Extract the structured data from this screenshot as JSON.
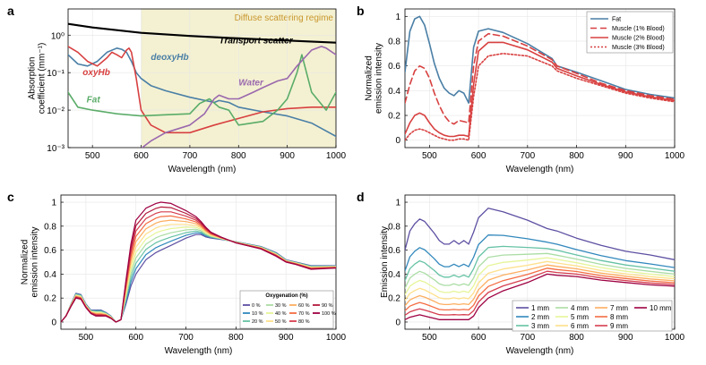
{
  "chart_data": [
    {
      "panel": "a",
      "type": "line",
      "xlabel": "Wavelength (nm)",
      "ylabel": [
        "Absorption",
        "coefficient (mm⁻¹)"
      ],
      "xlim": [
        450,
        1000
      ],
      "ylog": true,
      "ylim": [
        0.001,
        5
      ],
      "xticks": [
        500,
        600,
        700,
        800,
        900,
        1000
      ],
      "ytick_labels": [
        "10⁰",
        "10⁻¹",
        "10⁻²",
        "10⁻³"
      ],
      "shade": {
        "x0": 600,
        "x1": 1000,
        "label": "Diffuse scattering regime",
        "color": "#f4f1d2",
        "labelColor": "#c8962c"
      },
      "series": [
        {
          "name": "Transport scatter",
          "color": "#000000",
          "width": 2.2,
          "x": [
            450,
            500,
            600,
            700,
            800,
            900,
            1000
          ],
          "y": [
            2.0,
            1.6,
            1.15,
            0.95,
            0.82,
            0.72,
            0.63
          ]
        },
        {
          "name": "deoxyHb",
          "color": "#4a7fa6",
          "width": 1.6,
          "x": [
            450,
            470,
            490,
            510,
            530,
            550,
            560,
            570,
            580,
            590,
            600,
            620,
            650,
            700,
            750,
            760,
            780,
            800,
            850,
            900,
            950,
            1000
          ],
          "y": [
            0.3,
            0.17,
            0.15,
            0.2,
            0.35,
            0.45,
            0.42,
            0.35,
            0.2,
            0.1,
            0.07,
            0.045,
            0.033,
            0.022,
            0.016,
            0.018,
            0.016,
            0.012,
            0.009,
            0.007,
            0.0045,
            0.002
          ]
        },
        {
          "name": "oxyHb",
          "color": "#d84040",
          "width": 1.6,
          "x": [
            450,
            470,
            490,
            510,
            530,
            540,
            550,
            560,
            570,
            575,
            580,
            590,
            600,
            620,
            650,
            700,
            750,
            800,
            850,
            900,
            950,
            1000
          ],
          "y": [
            0.5,
            0.35,
            0.2,
            0.15,
            0.25,
            0.35,
            0.3,
            0.25,
            0.4,
            0.45,
            0.35,
            0.07,
            0.01,
            0.004,
            0.0025,
            0.0025,
            0.004,
            0.006,
            0.009,
            0.011,
            0.012,
            0.012
          ]
        },
        {
          "name": "Fat",
          "color": "#5aac68",
          "width": 1.6,
          "x": [
            450,
            470,
            500,
            550,
            600,
            650,
            700,
            720,
            740,
            760,
            780,
            800,
            850,
            880,
            900,
            920,
            930,
            950,
            980,
            1000
          ],
          "y": [
            0.03,
            0.012,
            0.01,
            0.008,
            0.007,
            0.0075,
            0.008,
            0.015,
            0.02,
            0.012,
            0.01,
            0.004,
            0.005,
            0.01,
            0.02,
            0.1,
            0.3,
            0.03,
            0.01,
            0.03
          ]
        },
        {
          "name": "Water",
          "color": "#9a68ad",
          "width": 1.6,
          "x": [
            600,
            620,
            650,
            700,
            730,
            750,
            760,
            780,
            800,
            830,
            850,
            880,
            900,
            920,
            950,
            970,
            980,
            1000
          ],
          "y": [
            0.00095,
            0.0015,
            0.0025,
            0.004,
            0.008,
            0.02,
            0.025,
            0.02,
            0.02,
            0.03,
            0.04,
            0.06,
            0.07,
            0.15,
            0.4,
            0.5,
            0.45,
            0.3
          ]
        }
      ],
      "annotations": [
        {
          "text": "Transport scatter",
          "x": 760,
          "y": 0.6,
          "color": "#000000"
        },
        {
          "text": "deoxyHb",
          "x": 620,
          "y": 0.22,
          "color": "#4a7fa6"
        },
        {
          "text": "oxyHb",
          "x": 480,
          "y": 0.085,
          "color": "#d84040"
        },
        {
          "text": "Water",
          "x": 800,
          "y": 0.045,
          "color": "#9a68ad"
        },
        {
          "text": "Fat",
          "x": 488,
          "y": 0.016,
          "color": "#5aac68"
        }
      ]
    },
    {
      "panel": "b",
      "type": "line",
      "xlabel": "Wavelength (nm)",
      "ylabel": [
        "Normalized",
        "emission intensity"
      ],
      "xlim": [
        450,
        1000
      ],
      "ylim": [
        -0.06,
        1.06
      ],
      "xticks": [
        500,
        600,
        700,
        800,
        900,
        1000
      ],
      "yticks": [
        0,
        0.2,
        0.4,
        0.6,
        0.8,
        1
      ],
      "ytick_labels": [
        "0",
        "0.2",
        "0.4",
        "0.6",
        "0.8",
        "1"
      ],
      "legend": {
        "position": "top-right"
      },
      "series": [
        {
          "name": "Fat",
          "color": "#4a7fa6",
          "dash": "",
          "width": 1.6,
          "x": [
            450,
            460,
            470,
            480,
            490,
            500,
            510,
            520,
            530,
            540,
            550,
            560,
            570,
            580,
            590,
            600,
            620,
            650,
            700,
            750,
            760,
            800,
            850,
            900,
            950,
            1000
          ],
          "y": [
            0.55,
            0.88,
            0.98,
            1.0,
            0.93,
            0.78,
            0.62,
            0.5,
            0.42,
            0.38,
            0.36,
            0.4,
            0.38,
            0.3,
            0.75,
            0.88,
            0.9,
            0.87,
            0.78,
            0.66,
            0.6,
            0.55,
            0.48,
            0.41,
            0.37,
            0.34
          ]
        },
        {
          "name": "Muscle (1% Blood)",
          "color": "#d84040",
          "dash": "7,4",
          "width": 1.6,
          "x": [
            450,
            460,
            470,
            480,
            490,
            500,
            510,
            520,
            530,
            540,
            550,
            560,
            570,
            580,
            590,
            600,
            620,
            650,
            700,
            750,
            760,
            800,
            850,
            900,
            950,
            1000
          ],
          "y": [
            0.3,
            0.45,
            0.56,
            0.6,
            0.58,
            0.5,
            0.38,
            0.28,
            0.2,
            0.15,
            0.13,
            0.16,
            0.15,
            0.14,
            0.6,
            0.8,
            0.86,
            0.84,
            0.76,
            0.65,
            0.6,
            0.54,
            0.46,
            0.4,
            0.36,
            0.33
          ]
        },
        {
          "name": "Muscle (2% Blood)",
          "color": "#d84040",
          "dash": "",
          "width": 1.6,
          "x": [
            450,
            460,
            470,
            480,
            490,
            500,
            510,
            520,
            530,
            540,
            550,
            560,
            570,
            580,
            590,
            600,
            620,
            650,
            700,
            750,
            760,
            800,
            850,
            900,
            950,
            1000
          ],
          "y": [
            0.05,
            0.14,
            0.2,
            0.22,
            0.2,
            0.14,
            0.09,
            0.06,
            0.04,
            0.03,
            0.03,
            0.04,
            0.04,
            0.03,
            0.45,
            0.72,
            0.79,
            0.79,
            0.73,
            0.63,
            0.58,
            0.52,
            0.45,
            0.39,
            0.35,
            0.32
          ]
        },
        {
          "name": "Muscle (3% Blood)",
          "color": "#d84040",
          "dash": "2,2",
          "width": 1.6,
          "x": [
            450,
            460,
            470,
            480,
            490,
            500,
            510,
            520,
            530,
            540,
            550,
            560,
            570,
            580,
            590,
            600,
            620,
            650,
            700,
            750,
            760,
            800,
            850,
            900,
            950,
            1000
          ],
          "y": [
            0.0,
            0.05,
            0.08,
            0.09,
            0.08,
            0.06,
            0.04,
            0.02,
            0.01,
            0.0,
            0.0,
            0.01,
            0.01,
            0.0,
            0.35,
            0.6,
            0.68,
            0.7,
            0.68,
            0.6,
            0.56,
            0.5,
            0.44,
            0.38,
            0.34,
            0.31
          ]
        }
      ]
    },
    {
      "panel": "c",
      "type": "line",
      "xlabel": "Wavelength (nm)",
      "ylabel": [
        "Normalized",
        "emission intensity"
      ],
      "xlim": [
        450,
        1000
      ],
      "ylim": [
        -0.06,
        1.06
      ],
      "xticks": [
        500,
        600,
        700,
        800,
        900,
        1000
      ],
      "yticks": [
        0,
        0.2,
        0.4,
        0.6,
        0.8,
        1
      ],
      "ytick_labels": [
        "0",
        "0.2",
        "0.4",
        "0.6",
        "0.8",
        "1"
      ],
      "legend": {
        "title": "Oxygenation (%)",
        "position": "bottom-right",
        "columns": 4
      },
      "series": [
        {
          "name": "0 %",
          "color": "#5e4fa2"
        },
        {
          "name": "10 %",
          "color": "#3288bd"
        },
        {
          "name": "20 %",
          "color": "#66c2a5"
        },
        {
          "name": "30 %",
          "color": "#abdda4"
        },
        {
          "name": "40 %",
          "color": "#e6f598"
        },
        {
          "name": "50 %",
          "color": "#fee08b"
        },
        {
          "name": "60 %",
          "color": "#fdae61"
        },
        {
          "name": "70 %",
          "color": "#f46d43"
        },
        {
          "name": "80 %",
          "color": "#d53e4f"
        },
        {
          "name": "90 %",
          "color": "#b2183b"
        },
        {
          "name": "100 %",
          "color": "#9e0142"
        }
      ],
      "x": [
        450,
        460,
        470,
        480,
        490,
        500,
        510,
        520,
        530,
        540,
        550,
        560,
        570,
        580,
        590,
        600,
        620,
        640,
        650,
        670,
        700,
        720,
        730,
        740,
        750,
        770,
        800,
        850,
        880,
        900,
        920,
        950,
        1000
      ],
      "y_first": [
        0.0,
        0.05,
        0.15,
        0.24,
        0.23,
        0.15,
        0.1,
        0.1,
        0.1,
        0.08,
        0.05,
        0.0,
        0.02,
        0.15,
        0.3,
        0.4,
        0.52,
        0.58,
        0.6,
        0.64,
        0.7,
        0.73,
        0.73,
        0.71,
        0.7,
        0.69,
        0.67,
        0.63,
        0.58,
        0.52,
        0.5,
        0.47,
        0.47
      ],
      "y_last": [
        0.0,
        0.05,
        0.13,
        0.2,
        0.19,
        0.12,
        0.07,
        0.05,
        0.05,
        0.05,
        0.03,
        0.0,
        0.02,
        0.35,
        0.65,
        0.85,
        0.95,
        0.99,
        1.0,
        0.99,
        0.93,
        0.88,
        0.84,
        0.79,
        0.75,
        0.71,
        0.66,
        0.61,
        0.55,
        0.5,
        0.48,
        0.44,
        0.45
      ]
    },
    {
      "panel": "d",
      "type": "line",
      "xlabel": "Wavelength (nm)",
      "ylabel": [
        "Emission intensity"
      ],
      "xlim": [
        450,
        1000
      ],
      "ylim": [
        -0.06,
        1.06
      ],
      "xticks": [
        500,
        600,
        700,
        800,
        900,
        1000
      ],
      "yticks": [
        0,
        0.2,
        0.4,
        0.6,
        0.8,
        1
      ],
      "ytick_labels": [
        "0",
        "0.2",
        "0.4",
        "0.6",
        "0.8",
        "1"
      ],
      "legend": {
        "position": "bottom-right",
        "columns": 4
      },
      "series": [
        {
          "name": "1 mm",
          "color": "#5e4fa2"
        },
        {
          "name": "2 mm",
          "color": "#3288bd"
        },
        {
          "name": "3 mm",
          "color": "#66c2a5"
        },
        {
          "name": "4 mm",
          "color": "#abdda4"
        },
        {
          "name": "5 mm",
          "color": "#e6f598"
        },
        {
          "name": "6 mm",
          "color": "#fee08b"
        },
        {
          "name": "7 mm",
          "color": "#fdae61"
        },
        {
          "name": "8 mm",
          "color": "#f46d43"
        },
        {
          "name": "9 mm",
          "color": "#d53e4f"
        },
        {
          "name": "10 mm",
          "color": "#9e0142"
        }
      ],
      "x": [
        450,
        460,
        470,
        480,
        490,
        500,
        510,
        520,
        530,
        540,
        550,
        560,
        570,
        580,
        590,
        600,
        620,
        650,
        700,
        740,
        760,
        800,
        850,
        900,
        950,
        1000
      ],
      "y_top": [
        0.6,
        0.76,
        0.82,
        0.86,
        0.84,
        0.79,
        0.74,
        0.68,
        0.65,
        0.65,
        0.68,
        0.65,
        0.68,
        0.65,
        0.75,
        0.87,
        0.95,
        0.92,
        0.85,
        0.78,
        0.76,
        0.7,
        0.64,
        0.59,
        0.56,
        0.52
      ],
      "y_bottom": [
        0.02,
        0.04,
        0.05,
        0.06,
        0.05,
        0.04,
        0.03,
        0.02,
        0.02,
        0.02,
        0.02,
        0.02,
        0.02,
        0.02,
        0.05,
        0.12,
        0.2,
        0.26,
        0.33,
        0.4,
        0.39,
        0.38,
        0.35,
        0.33,
        0.31,
        0.3
      ]
    }
  ]
}
